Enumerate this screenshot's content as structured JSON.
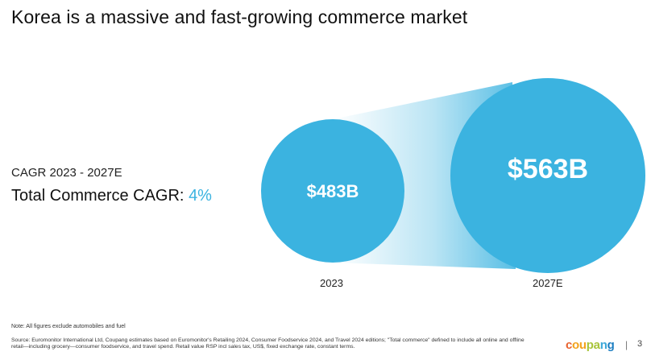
{
  "slide": {
    "title": "Korea is a massive and fast-growing commerce market",
    "cagr_period": "CAGR 2023 - 2027E",
    "cagr_label": "Total Commerce CAGR:",
    "cagr_value": "4%"
  },
  "bubbles": [
    {
      "value_label": "$483B",
      "year": "2023",
      "value": 483
    },
    {
      "value_label": "$563B",
      "year": "2027E",
      "value": 563
    }
  ],
  "colors": {
    "bubble": "#3bb3e0",
    "accent": "#3bb3e0"
  },
  "footer": {
    "note": "Note: All figures exclude automobiles and fuel",
    "source": "Source: Euromonitor International Ltd, Coupang estimates based on Euromonitor's Retailing 2024, Consumer Foodservice 2024, and Travel 2024 editions; \"Total commerce\" defined to include all online and offline retail—including grocery—consumer foodservice, and travel spend. Retail value RSP incl sales tax, US$, fixed exchange rate, constant terms.",
    "brand_parts": [
      "c",
      "ou",
      "pa",
      "n",
      "g"
    ],
    "separator": "|",
    "page_number": "3"
  }
}
